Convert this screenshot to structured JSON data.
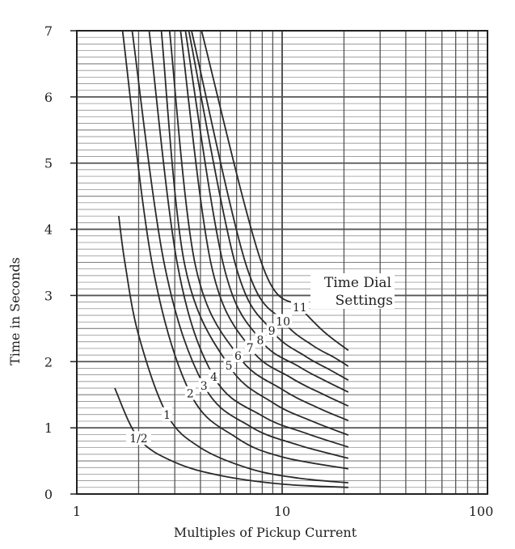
{
  "chart_data": {
    "type": "line",
    "title": "",
    "xlabel": "Multiples of Pickup Current",
    "ylabel": "Time in Seconds",
    "xscale": "log",
    "xlim": [
      1,
      100
    ],
    "ylim": [
      0,
      7
    ],
    "xticks": [
      "1",
      "10",
      "100"
    ],
    "yticks": [
      "0",
      "1",
      "2",
      "3",
      "4",
      "5",
      "6",
      "7"
    ],
    "grid": true,
    "annotation": {
      "line1": "Time Dial",
      "line2": "Settings"
    },
    "line_color": "#2a2a2a",
    "grid_color": "#555555",
    "series": [
      {
        "name": "1/2",
        "label_at": [
          2.0,
          0.84
        ],
        "points": [
          [
            1.53,
            1.6
          ],
          [
            2.0,
            0.84
          ],
          [
            3.0,
            0.48
          ],
          [
            5.0,
            0.28
          ],
          [
            10,
            0.15
          ],
          [
            21,
            0.1
          ]
        ]
      },
      {
        "name": "1",
        "label_at": [
          2.75,
          1.2
        ],
        "points": [
          [
            1.6,
            4.2
          ],
          [
            1.72,
            3.47
          ],
          [
            2.0,
            2.4
          ],
          [
            2.75,
            1.2
          ],
          [
            4.0,
            0.7
          ],
          [
            7.0,
            0.38
          ],
          [
            12,
            0.24
          ],
          [
            21,
            0.17
          ]
        ]
      },
      {
        "name": "2",
        "label_at": [
          3.57,
          1.52
        ],
        "points": [
          [
            1.67,
            7
          ],
          [
            2.33,
            3.47
          ],
          [
            3.57,
            1.52
          ],
          [
            6.0,
            0.85
          ],
          [
            10,
            0.56
          ],
          [
            21,
            0.38
          ]
        ]
      },
      {
        "name": "3",
        "label_at": [
          4.16,
          1.64
        ],
        "points": [
          [
            1.86,
            7
          ],
          [
            2.67,
            3.47
          ],
          [
            4.16,
            1.64
          ],
          [
            7.0,
            1.02
          ],
          [
            12,
            0.74
          ],
          [
            21,
            0.54
          ]
        ]
      },
      {
        "name": "4",
        "label_at": [
          4.65,
          1.77
        ],
        "points": [
          [
            2.25,
            7
          ],
          [
            3.09,
            3.47
          ],
          [
            4.65,
            1.77
          ],
          [
            8.0,
            1.18
          ],
          [
            13,
            0.92
          ],
          [
            21,
            0.71
          ]
        ]
      },
      {
        "name": "5",
        "label_at": [
          5.5,
          1.94
        ],
        "points": [
          [
            2.58,
            7
          ],
          [
            3.35,
            3.47
          ],
          [
            5.5,
            1.94
          ],
          [
            9.0,
            1.38
          ],
          [
            14,
            1.1
          ],
          [
            21,
            0.89
          ]
        ]
      },
      {
        "name": "6",
        "label_at": [
          6.1,
          2.09
        ],
        "points": [
          [
            2.83,
            7
          ],
          [
            3.77,
            3.47
          ],
          [
            6.1,
            2.09
          ],
          [
            10,
            1.58
          ],
          [
            15,
            1.3
          ],
          [
            21,
            1.11
          ]
        ]
      },
      {
        "name": "7",
        "label_at": [
          6.97,
          2.21
        ],
        "points": [
          [
            3.2,
            7
          ],
          [
            4.51,
            3.47
          ],
          [
            6.97,
            2.21
          ],
          [
            11,
            1.76
          ],
          [
            16,
            1.5
          ],
          [
            21,
            1.33
          ]
        ]
      },
      {
        "name": "8",
        "label_at": [
          7.83,
          2.33
        ],
        "points": [
          [
            3.38,
            7
          ],
          [
            5.17,
            3.47
          ],
          [
            7.83,
            2.33
          ],
          [
            12,
            1.93
          ],
          [
            16,
            1.72
          ],
          [
            21,
            1.54
          ]
        ]
      },
      {
        "name": "9",
        "label_at": [
          8.9,
          2.47
        ],
        "points": [
          [
            3.51,
            7
          ],
          [
            5.92,
            3.47
          ],
          [
            8.9,
            2.47
          ],
          [
            13,
            2.08
          ],
          [
            17,
            1.88
          ],
          [
            21,
            1.72
          ]
        ]
      },
      {
        "name": "10",
        "label_at": [
          10.1,
          2.61
        ],
        "points": [
          [
            3.62,
            7
          ],
          [
            6.66,
            3.47
          ],
          [
            10.1,
            2.61
          ],
          [
            14,
            2.25
          ],
          [
            18,
            2.06
          ],
          [
            21,
            1.93
          ]
        ]
      },
      {
        "name": "11",
        "label_at": [
          12.2,
          2.82
        ],
        "points": [
          [
            4.05,
            7
          ],
          [
            7.98,
            3.47
          ],
          [
            12.2,
            2.82
          ],
          [
            16,
            2.45
          ],
          [
            21,
            2.17
          ]
        ]
      }
    ]
  }
}
